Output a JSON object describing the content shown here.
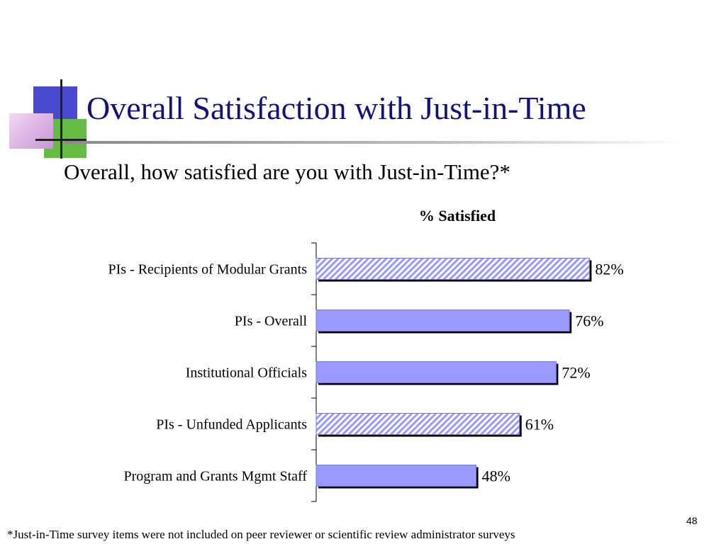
{
  "slide": {
    "title": "Overall Satisfaction with Just-in-Time",
    "question": "Overall, how satisfied are you with Just-in-Time?*",
    "footnote": "*Just-in-Time survey items were not included on peer reviewer or scientific review administrator surveys",
    "slide_number": "48"
  },
  "chart_data": {
    "type": "bar",
    "orientation": "horizontal",
    "series_label": "% Satisfied",
    "categories": [
      "PIs - Recipients of Modular Grants",
      "PIs - Overall",
      "Institutional Officials",
      "PIs - Unfunded Applicants",
      "Program and Grants Mgmt Staff"
    ],
    "values": [
      82,
      76,
      72,
      61,
      48
    ],
    "value_labels": [
      "82%",
      "76%",
      "72%",
      "61%",
      "48%"
    ],
    "bar_patterns": [
      "hatched",
      "solid",
      "solid",
      "hatched",
      "solid"
    ],
    "xlim": [
      0,
      100
    ],
    "grid": false,
    "colors": {
      "bar_fill": "#9999ff",
      "bar_border": "#000000",
      "hatch_line": "#9999ff"
    }
  }
}
